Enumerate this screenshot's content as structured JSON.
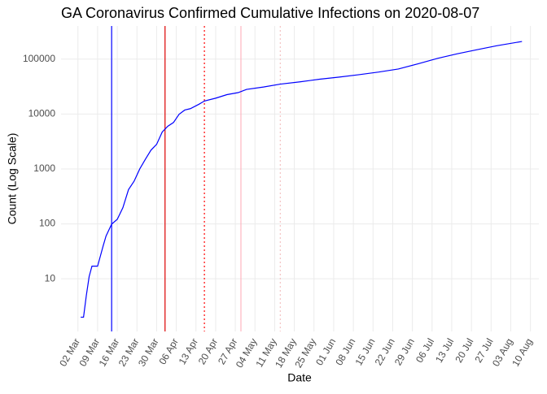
{
  "chart_data": {
    "type": "line",
    "title": "GA Coronavirus Confirmed Cumulative Infections on 2020-08-07",
    "x_label": "Date",
    "y_label": "Count (Log Scale)",
    "log_y": true,
    "grid": true,
    "color": "#0000ff",
    "x": [
      "03-03",
      "03-04",
      "03-05",
      "03-06",
      "03-07",
      "03-09",
      "03-10",
      "03-11",
      "03-12",
      "03-14",
      "03-16",
      "03-18",
      "03-20",
      "03-22",
      "03-24",
      "03-26",
      "03-28",
      "03-30",
      "04-01",
      "04-03",
      "04-05",
      "04-07",
      "04-09",
      "04-11",
      "04-14",
      "04-16",
      "04-20",
      "04-24",
      "04-28",
      "05-01",
      "05-07",
      "05-13",
      "05-20",
      "05-27",
      "06-03",
      "06-10",
      "06-17",
      "06-24",
      "07-01",
      "07-08",
      "07-15",
      "07-22",
      "07-29",
      "08-07"
    ],
    "values": [
      2,
      2,
      5,
      11,
      17,
      17,
      26,
      40,
      60,
      99,
      121,
      197,
      420,
      600,
      1000,
      1500,
      2200,
      2800,
      4700,
      6000,
      7000,
      9900,
      11800,
      12500,
      15000,
      17200,
      19400,
      22500,
      24500,
      28000,
      31000,
      35000,
      38500,
      43000,
      47000,
      52000,
      58000,
      66000,
      82000,
      103000,
      125000,
      148000,
      175000,
      209000
    ],
    "xlim": [
      "02-25",
      "08-13"
    ],
    "xticks": [
      {
        "value": "03-02",
        "label": "02 Mar"
      },
      {
        "value": "03-09",
        "label": "09 Mar"
      },
      {
        "value": "03-16",
        "label": "16 Mar"
      },
      {
        "value": "03-23",
        "label": "23 Mar"
      },
      {
        "value": "03-30",
        "label": "30 Mar"
      },
      {
        "value": "04-06",
        "label": "06 Apr"
      },
      {
        "value": "04-13",
        "label": "13 Apr"
      },
      {
        "value": "04-20",
        "label": "20 Apr"
      },
      {
        "value": "04-27",
        "label": "27 Apr"
      },
      {
        "value": "05-04",
        "label": "04 May"
      },
      {
        "value": "05-11",
        "label": "11 May"
      },
      {
        "value": "05-18",
        "label": "18 May"
      },
      {
        "value": "05-25",
        "label": "25 May"
      },
      {
        "value": "06-01",
        "label": "01 Jun"
      },
      {
        "value": "06-08",
        "label": "08 Jun"
      },
      {
        "value": "06-15",
        "label": "15 Jun"
      },
      {
        "value": "06-22",
        "label": "22 Jun"
      },
      {
        "value": "06-29",
        "label": "29 Jun"
      },
      {
        "value": "07-06",
        "label": "06 Jul"
      },
      {
        "value": "07-13",
        "label": "13 Jul"
      },
      {
        "value": "07-20",
        "label": "20 Jul"
      },
      {
        "value": "07-27",
        "label": "27 Jul"
      },
      {
        "value": "08-03",
        "label": "03 Aug"
      },
      {
        "value": "08-10",
        "label": "10 Aug"
      }
    ],
    "ylim": [
      1.1,
      400000
    ],
    "yticks": [
      10,
      100,
      1000,
      10000,
      100000
    ],
    "vlines": [
      {
        "x": "03-14",
        "color": "#0000ff",
        "style": "solid"
      },
      {
        "x": "04-02",
        "color": "#dd0000",
        "style": "solid"
      },
      {
        "x": "04-16",
        "color": "#ff0000",
        "style": "dotted"
      },
      {
        "x": "04-29",
        "color": "#ffb6c1",
        "style": "solid"
      },
      {
        "x": "05-13",
        "color": "#f4c2c2",
        "style": "dotted"
      }
    ]
  }
}
